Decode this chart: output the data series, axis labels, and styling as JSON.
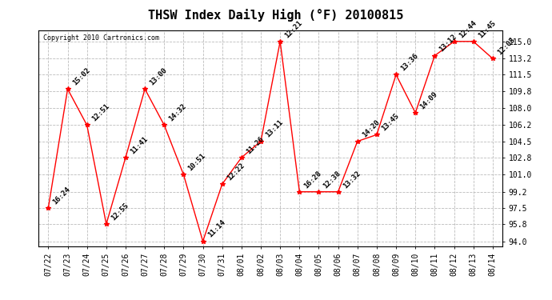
{
  "title": "THSW Index Daily High (°F) 20100815",
  "copyright": "Copyright 2010 Cartronics.com",
  "x_labels": [
    "07/22",
    "07/23",
    "07/24",
    "07/25",
    "07/26",
    "07/27",
    "07/28",
    "07/29",
    "07/30",
    "07/31",
    "08/01",
    "08/02",
    "08/03",
    "08/04",
    "08/05",
    "08/06",
    "08/07",
    "08/08",
    "08/09",
    "08/10",
    "08/11",
    "08/12",
    "08/13",
    "08/14"
  ],
  "y_values": [
    97.5,
    110.0,
    106.2,
    95.8,
    102.8,
    110.0,
    106.2,
    101.0,
    94.0,
    100.0,
    102.8,
    104.5,
    115.0,
    99.2,
    99.2,
    99.2,
    104.5,
    105.2,
    111.5,
    107.5,
    113.5,
    115.0,
    115.0,
    113.2
  ],
  "point_labels": [
    "16:24",
    "15:02",
    "12:51",
    "12:55",
    "11:41",
    "13:00",
    "14:32",
    "10:51",
    "11:14",
    "12:22",
    "11:26",
    "13:11",
    "12:21",
    "16:28",
    "12:38",
    "13:32",
    "14:20",
    "13:45",
    "13:36",
    "14:09",
    "13:12",
    "12:44",
    "11:45",
    "12:05"
  ],
  "y_ticks": [
    94.0,
    95.8,
    97.5,
    99.2,
    101.0,
    102.8,
    104.5,
    106.2,
    108.0,
    109.8,
    111.5,
    113.2,
    115.0
  ],
  "ylim": [
    93.5,
    116.2
  ],
  "line_color": "red",
  "marker_color": "red",
  "grid_color": "#bbbbbb",
  "bg_color": "#ffffff",
  "title_fontsize": 11,
  "tick_fontsize": 7,
  "point_label_fontsize": 6.5,
  "xlabel_rotation": 90
}
